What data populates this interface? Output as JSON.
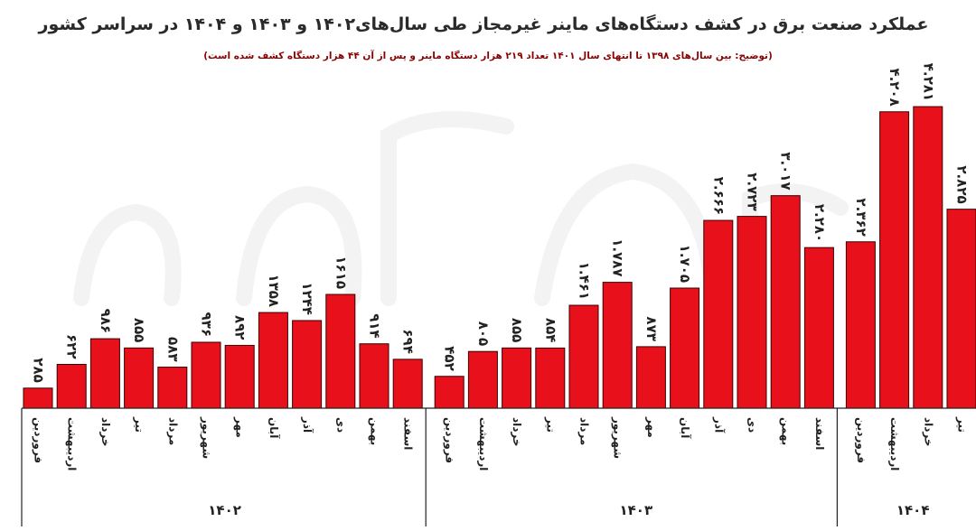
{
  "title": "عملکرد صنعت برق در کشف دستگاه‌های ماینر غیرمجاز طی سال‌های۱۴۰۲ و ۱۴۰۳ و ۱۴۰۴ در سراسر کشور",
  "subtitle": "(توضیح: بین سال‌های ۱۳۹۸ تا انتهای سال ۱۴۰۱ تعداد ۲۱۹ هزار دستگاه ماینر و پس از آن ۴۴ هزار دستگاه کشف شده است)",
  "chart_data": {
    "type": "bar",
    "title": "عملکرد صنعت برق در کشف دستگاه‌های ماینر غیرمجاز طی سال‌های۱۴۰۲ و ۱۴۰۳ و ۱۴۰۴ در سراسر کشور",
    "xlabel": "",
    "ylabel": "",
    "ylim": [
      0,
      4400
    ],
    "grid": false,
    "bar_color": "#e8101a",
    "groups": [
      {
        "name": "۱۴۰۲",
        "categories": [
          "فروردین",
          "اردیبهشت",
          "خرداد",
          "تیر",
          "مرداد",
          "شهریور",
          "مهر",
          "آبان",
          "آذر",
          "دی",
          "بهمن",
          "اسفند"
        ],
        "values": [
          285,
          622,
          986,
          855,
          583,
          936,
          892,
          1358,
          1244,
          1615,
          914,
          694
        ],
        "labels": [
          "۲۸۵",
          "۶۲۲",
          "۹۸۶",
          "۸۵۵",
          "۵۸۳",
          "۹۳۶",
          "۸۹۲",
          "۱۳۵۸",
          "۱۲۴۴",
          "۱۶۱۵",
          "۹۱۴",
          "۶۹۴"
        ]
      },
      {
        "name": "۱۴۰۳",
        "categories": [
          "فروردین",
          "اردیبهشت",
          "خرداد",
          "تیر",
          "مرداد",
          "شهریور",
          "مهر",
          "آبان",
          "آذر",
          "دی",
          "بهمن",
          "اسفند"
        ],
        "values": [
          452,
          805,
          855,
          854,
          1461,
          1787,
          873,
          1705,
          2666,
          2723,
          3017,
          2280
        ],
        "labels": [
          "۴۵۲",
          "۸۰۵",
          "۸۵۵",
          "۸۵۴",
          "۱.۴۶۱",
          "۱.۷۸۷",
          "۸۷۳",
          "۱.۷۰۵",
          "۲.۶۶۶",
          "۲.۷۲۳",
          "۳.۰۱۷",
          "۲.۲۸۰"
        ]
      },
      {
        "name": "۱۴۰۴",
        "categories": [
          "فروردین",
          "اردیبهشت",
          "خرداد",
          "تیر"
        ],
        "values": [
          2362,
          4208,
          4281,
          2825
        ],
        "labels": [
          "۲.۳۶۲",
          "۴.۲۰۸",
          "۴.۲۸۱",
          "۲.۸۲۵"
        ]
      }
    ]
  }
}
